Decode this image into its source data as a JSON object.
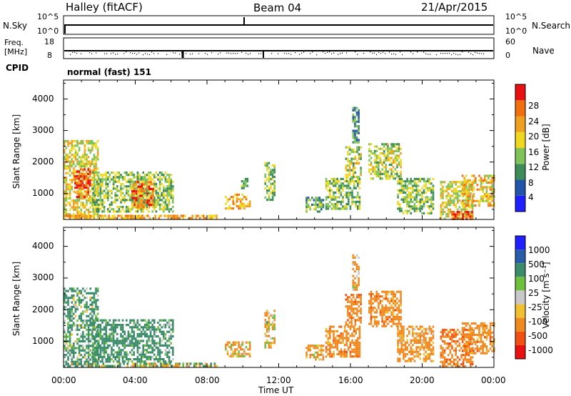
{
  "header": {
    "station": "Halley (fitACF)",
    "beam": "Beam 04",
    "date": "21/Apr/2015"
  },
  "top_panels": {
    "nsky": {
      "label": "N.Sky",
      "ticks": [
        "10^5",
        "10^0"
      ]
    },
    "nsearch": {
      "label": "N.Search",
      "ticks": [
        "10^5",
        "10^0"
      ]
    },
    "freq": {
      "label_line1": "Freq.",
      "label_line2": "[MHz]",
      "ticks": [
        "18",
        "8"
      ]
    },
    "nave": {
      "label": "Nave",
      "ticks": [
        "60",
        "0"
      ]
    },
    "cpid": {
      "label": "CPID",
      "mode": "normal (fast) 151"
    }
  },
  "colors": {
    "power_scale": [
      "#1f1fff",
      "#2255aa",
      "#3d8c5a",
      "#80c35a",
      "#f0d820",
      "#f0a020",
      "#f07010",
      "#e81010"
    ],
    "velocity_scale": [
      "#e81010",
      "#f05010",
      "#f08a20",
      "#f0c030",
      "#c8c8c8",
      "#70c040",
      "#3a8c6a",
      "#2a5aaa",
      "#1f1fff"
    ]
  },
  "chart_data": [
    {
      "type": "heatmap",
      "name": "power",
      "ylabel": "Slant Range [km]",
      "xlabel": "",
      "xlim": [
        "00:00",
        "24:00"
      ],
      "ylim": [
        180,
        4600
      ],
      "x_tick_labels": [],
      "y_tick_labels": [
        "1000",
        "2000",
        "3000",
        "4000"
      ],
      "colorbar": {
        "label": "Power [dB]",
        "ticks": [
          "4",
          "8",
          "12",
          "16",
          "20",
          "24",
          "28"
        ],
        "range": [
          0,
          32
        ]
      },
      "echo_regions": [
        {
          "t0": 0.0,
          "t1": 1.9,
          "r0": 300,
          "r1": 2700,
          "value": 18
        },
        {
          "t0": 0.6,
          "t1": 1.5,
          "r0": 900,
          "r1": 1800,
          "value": 27
        },
        {
          "t0": 1.6,
          "t1": 6.1,
          "r0": 400,
          "r1": 1700,
          "value": 14
        },
        {
          "t0": 3.8,
          "t1": 5.0,
          "r0": 600,
          "r1": 1400,
          "value": 24
        },
        {
          "t0": 0.0,
          "t1": 8.5,
          "r0": 200,
          "r1": 330,
          "value": 22
        },
        {
          "t0": 9.0,
          "t1": 10.4,
          "r0": 500,
          "r1": 1000,
          "value": 22
        },
        {
          "t0": 9.9,
          "t1": 10.3,
          "r0": 1200,
          "r1": 1500,
          "value": 12
        },
        {
          "t0": 11.2,
          "t1": 11.8,
          "r0": 800,
          "r1": 2000,
          "value": 14
        },
        {
          "t0": 13.5,
          "t1": 14.5,
          "r0": 400,
          "r1": 900,
          "value": 12
        },
        {
          "t0": 14.6,
          "t1": 16.5,
          "r0": 500,
          "r1": 1500,
          "value": 14
        },
        {
          "t0": 15.7,
          "t1": 16.6,
          "r0": 1500,
          "r1": 2500,
          "value": 16
        },
        {
          "t0": 16.1,
          "t1": 16.5,
          "r0": 2600,
          "r1": 3750,
          "value": 10
        },
        {
          "t0": 17.0,
          "t1": 18.8,
          "r0": 1500,
          "r1": 2600,
          "value": 16
        },
        {
          "t0": 18.6,
          "t1": 20.6,
          "r0": 400,
          "r1": 1500,
          "value": 14
        },
        {
          "t0": 21.0,
          "t1": 22.8,
          "r0": 200,
          "r1": 1400,
          "value": 18
        },
        {
          "t0": 21.6,
          "t1": 22.8,
          "r0": 200,
          "r1": 450,
          "value": 27
        },
        {
          "t0": 22.2,
          "t1": 24.0,
          "r0": 600,
          "r1": 1600,
          "value": 20
        }
      ]
    },
    {
      "type": "heatmap",
      "name": "velocity",
      "ylabel": "Slant Range [km]",
      "xlabel": "Time UT",
      "xlim": [
        "00:00",
        "24:00"
      ],
      "ylim": [
        180,
        4600
      ],
      "x_tick_labels": [
        "00:00",
        "04:00",
        "08:00",
        "12:00",
        "16:00",
        "20:00",
        "00:00"
      ],
      "y_tick_labels": [
        "1000",
        "2000",
        "3000",
        "4000"
      ],
      "colorbar": {
        "label": "Velocity [m s⁻¹]",
        "ticks": [
          "1000",
          "500",
          "100",
          "25",
          "-25",
          "-100",
          "-500",
          "-1000"
        ],
        "range": [
          -1200,
          1200
        ]
      },
      "echo_regions": [
        {
          "t0": 0.0,
          "t1": 1.9,
          "r0": 300,
          "r1": 2700,
          "value": 200
        },
        {
          "t0": 1.6,
          "t1": 6.1,
          "r0": 400,
          "r1": 1700,
          "value": 250
        },
        {
          "t0": 0.0,
          "t1": 8.5,
          "r0": 200,
          "r1": 330,
          "value": 60
        },
        {
          "t0": 9.0,
          "t1": 10.4,
          "r0": 500,
          "r1": 1000,
          "value": -150
        },
        {
          "t0": 11.2,
          "t1": 11.8,
          "r0": 800,
          "r1": 2000,
          "value": -120
        },
        {
          "t0": 13.5,
          "t1": 14.5,
          "r0": 400,
          "r1": 900,
          "value": -200
        },
        {
          "t0": 14.6,
          "t1": 16.5,
          "r0": 500,
          "r1": 1500,
          "value": -300
        },
        {
          "t0": 15.7,
          "t1": 16.6,
          "r0": 1500,
          "r1": 2500,
          "value": -350
        },
        {
          "t0": 16.1,
          "t1": 16.5,
          "r0": 2600,
          "r1": 3750,
          "value": -150
        },
        {
          "t0": 17.0,
          "t1": 18.8,
          "r0": 1500,
          "r1": 2600,
          "value": -300
        },
        {
          "t0": 18.6,
          "t1": 20.6,
          "r0": 400,
          "r1": 1500,
          "value": -250
        },
        {
          "t0": 21.0,
          "t1": 22.8,
          "r0": 200,
          "r1": 1400,
          "value": -400
        },
        {
          "t0": 22.2,
          "t1": 24.0,
          "r0": 600,
          "r1": 1600,
          "value": -300
        }
      ]
    }
  ]
}
